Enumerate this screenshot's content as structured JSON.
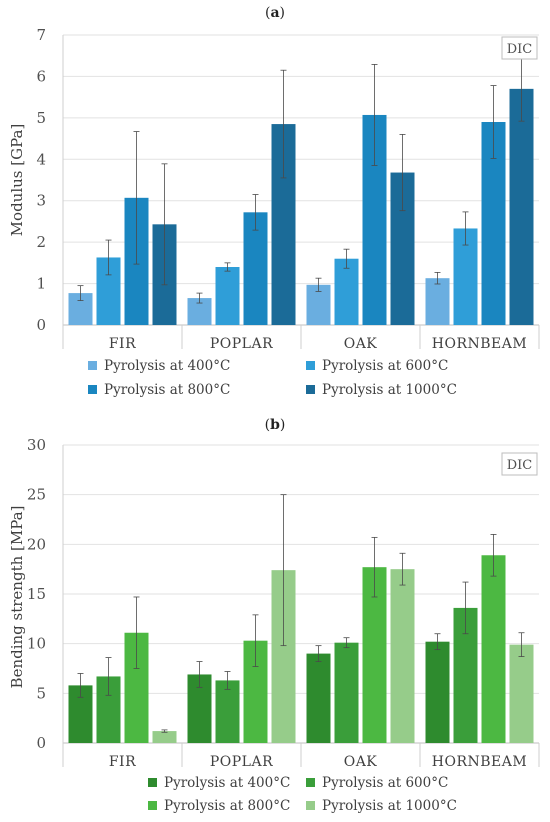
{
  "chart_data": [
    {
      "id": "a",
      "type": "bar",
      "panel_label": "a",
      "title": "",
      "ylabel": "Modulus [GPa]",
      "xlabel": "",
      "ylim": [
        0,
        7
      ],
      "yticks": [
        0,
        1,
        2,
        3,
        4,
        5,
        6,
        7
      ],
      "badge": "DIC",
      "grid": "horizontal",
      "legend_position": "bottom",
      "categories": [
        "FIR",
        "POPLAR",
        "OAK",
        "HORNBEAM"
      ],
      "series": [
        {
          "name": "Pyrolysis at 400°C",
          "color": "#6aaee0",
          "values": [
            0.77,
            0.65,
            0.97,
            1.13
          ],
          "errors": [
            0.18,
            0.12,
            0.16,
            0.14
          ]
        },
        {
          "name": "Pyrolysis at 600°C",
          "color": "#2f9ed8",
          "values": [
            1.63,
            1.4,
            1.6,
            2.33
          ],
          "errors": [
            0.42,
            0.1,
            0.23,
            0.4
          ]
        },
        {
          "name": "Pyrolysis at 800°C",
          "color": "#1a86c0",
          "values": [
            3.07,
            2.72,
            5.07,
            4.9
          ],
          "errors": [
            1.6,
            0.43,
            1.22,
            0.88
          ]
        },
        {
          "name": "Pyrolysis at 1000°C",
          "color": "#1b6b98",
          "values": [
            2.43,
            4.85,
            3.68,
            5.7
          ],
          "errors": [
            1.46,
            1.3,
            0.92,
            0.78
          ]
        }
      ]
    },
    {
      "id": "b",
      "type": "bar",
      "panel_label": "b",
      "title": "",
      "ylabel": "Bending strength [MPa]",
      "xlabel": "",
      "ylim": [
        0,
        30
      ],
      "yticks": [
        0,
        5,
        10,
        15,
        20,
        25,
        30
      ],
      "badge": "DIC",
      "grid": "horizontal",
      "legend_position": "bottom",
      "categories": [
        "FIR",
        "POPLAR",
        "OAK",
        "HORNBEAM"
      ],
      "series": [
        {
          "name": "Pyrolysis at 400°C",
          "color": "#2e8b2e",
          "values": [
            5.8,
            6.9,
            9.0,
            10.2
          ],
          "errors": [
            1.2,
            1.3,
            0.8,
            0.8
          ]
        },
        {
          "name": "Pyrolysis at 600°C",
          "color": "#3a9e3a",
          "values": [
            6.7,
            6.3,
            10.1,
            13.6
          ],
          "errors": [
            1.9,
            0.9,
            0.5,
            2.6
          ]
        },
        {
          "name": "Pyrolysis at 800°C",
          "color": "#4cb842",
          "values": [
            11.1,
            10.3,
            17.7,
            18.9
          ],
          "errors": [
            3.6,
            2.6,
            3.0,
            2.1
          ]
        },
        {
          "name": "Pyrolysis at 1000°C",
          "color": "#96cc8a",
          "values": [
            1.2,
            17.4,
            17.5,
            9.9
          ],
          "errors": [
            0.12,
            7.6,
            1.6,
            1.2
          ]
        }
      ]
    }
  ]
}
